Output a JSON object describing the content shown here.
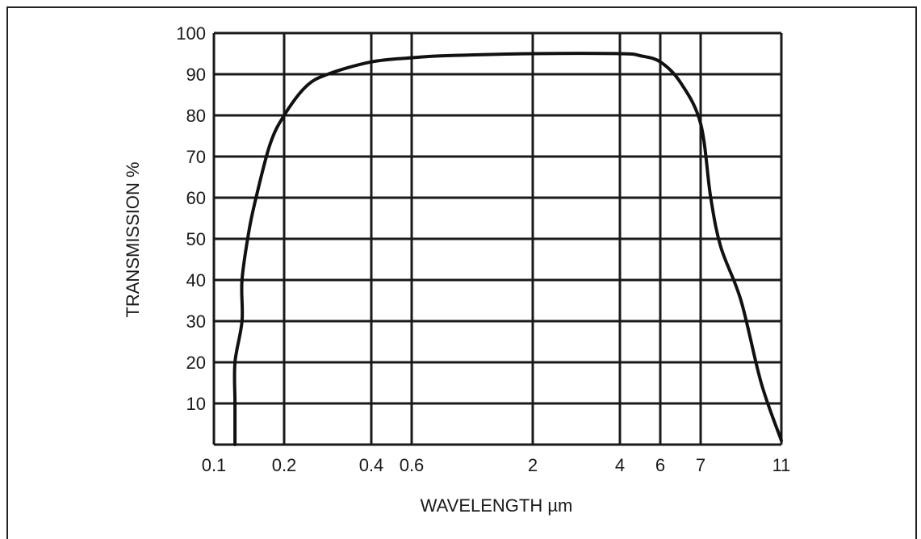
{
  "chart_data": {
    "type": "line",
    "title": "",
    "xlabel": "WAVELENGTH µm",
    "ylabel": "TRANSMISSION %",
    "grid": true,
    "legend": "none",
    "x_ticks": [
      "0.1",
      "0.2",
      "0.4",
      "0.6",
      "2",
      "4",
      "6",
      "7",
      "11"
    ],
    "y_ticks": [
      "10",
      "20",
      "30",
      "40",
      "50",
      "60",
      "70",
      "80",
      "90",
      "100"
    ],
    "ylim": [
      0,
      100
    ],
    "series": [
      {
        "points": [
          {
            "x": "0.13",
            "y": 0
          },
          {
            "x": "0.13",
            "y": 10
          },
          {
            "x": "0.13",
            "y": 20
          },
          {
            "x": "0.14",
            "y": 30
          },
          {
            "x": "0.14",
            "y": 40
          },
          {
            "x": "0.15",
            "y": 52
          },
          {
            "x": "0.16",
            "y": 60
          },
          {
            "x": "0.18",
            "y": 73
          },
          {
            "x": "0.2",
            "y": 80
          },
          {
            "x": "0.25",
            "y": 87
          },
          {
            "x": "0.3",
            "y": 90
          },
          {
            "x": "0.4",
            "y": 93
          },
          {
            "x": "0.6",
            "y": 94
          },
          {
            "x": "1",
            "y": 94.5
          },
          {
            "x": "2",
            "y": 95
          },
          {
            "x": "4",
            "y": 95
          },
          {
            "x": "5",
            "y": 94.5
          },
          {
            "x": "6",
            "y": 93
          },
          {
            "x": "6.5",
            "y": 88
          },
          {
            "x": "7",
            "y": 78
          },
          {
            "x": "7.5",
            "y": 60
          },
          {
            "x": "8",
            "y": 48
          },
          {
            "x": "9",
            "y": 35
          },
          {
            "x": "10",
            "y": 15
          },
          {
            "x": "11",
            "y": 1
          }
        ]
      }
    ]
  }
}
